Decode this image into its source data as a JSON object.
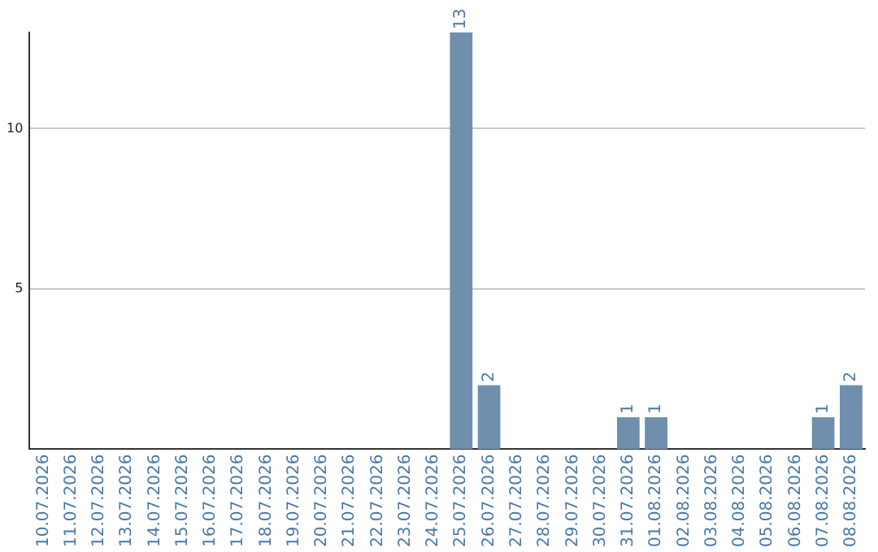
{
  "chart_data": {
    "type": "bar",
    "categories": [
      "10.07.2026",
      "11.07.2026",
      "12.07.2026",
      "13.07.2026",
      "14.07.2026",
      "15.07.2026",
      "16.07.2026",
      "17.07.2026",
      "18.07.2026",
      "19.07.2026",
      "20.07.2026",
      "21.07.2026",
      "22.07.2026",
      "23.07.2026",
      "24.07.2026",
      "25.07.2026",
      "26.07.2026",
      "27.07.2026",
      "28.07.2026",
      "29.07.2026",
      "30.07.2026",
      "31.07.2026",
      "01.08.2026",
      "02.08.2026",
      "03.08.2026",
      "04.08.2026",
      "05.08.2026",
      "06.08.2026",
      "07.08.2026",
      "08.08.2026"
    ],
    "values": [
      0,
      0,
      0,
      0,
      0,
      0,
      0,
      0,
      0,
      0,
      0,
      0,
      0,
      0,
      0,
      13,
      2,
      0,
      0,
      0,
      0,
      1,
      1,
      0,
      0,
      0,
      0,
      0,
      1,
      2
    ],
    "value_labels": [
      null,
      null,
      null,
      null,
      null,
      null,
      null,
      null,
      null,
      null,
      null,
      null,
      null,
      null,
      null,
      "13",
      "2",
      null,
      null,
      null,
      null,
      "1",
      "1",
      null,
      null,
      null,
      null,
      null,
      "1",
      "2"
    ],
    "color": "#6f8fad",
    "ylim": [
      0,
      13
    ],
    "yticks": [
      5,
      10
    ],
    "grid": "y",
    "legend": false
  }
}
